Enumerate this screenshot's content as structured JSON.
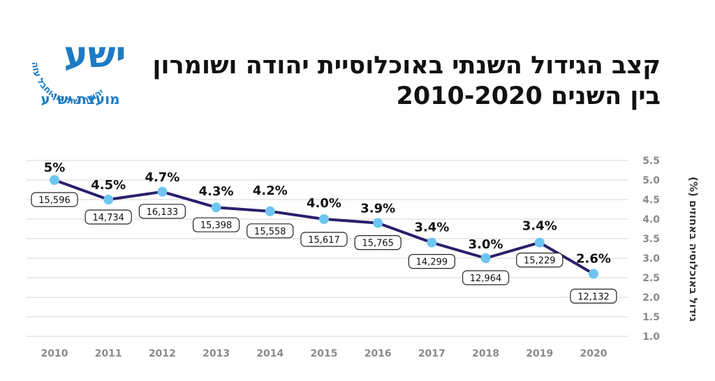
{
  "header": {
    "title_line1": "קצב הגידול השנתי באוכלוסיית יהודה ושומרון",
    "title_line2": "בין השנים 2010-2020"
  },
  "logo": {
    "emblem_text": "ישע",
    "arc_text": "יהודה שומרון וחבל עזה",
    "org_name": "מועצת יש\"ע",
    "brand_color": "#1b7bc4"
  },
  "chart_data": {
    "type": "line",
    "x": [
      "2010",
      "2011",
      "2012",
      "2013",
      "2014",
      "2015",
      "2016",
      "2017",
      "2018",
      "2019",
      "2020"
    ],
    "series": [
      {
        "values": [
          5.0,
          4.5,
          4.7,
          4.3,
          4.2,
          4.0,
          3.9,
          3.4,
          3.0,
          3.4,
          2.6
        ]
      }
    ],
    "value_labels": [
      "5%",
      "4.5%",
      "4.7%",
      "4.3%",
      "4.2%",
      "4.0%",
      "3.9%",
      "3.4%",
      "3.0%",
      "3.4%",
      "2.6%"
    ],
    "count_labels": [
      "15,596",
      "14,734",
      "16,133",
      "15,398",
      "15,558",
      "15,617",
      "15,765",
      "14,299",
      "12,964",
      "15,229",
      "12,132"
    ],
    "ylabel": "גידול באוכלוסיה באחוזים (%)",
    "ylim": [
      1.0,
      5.5
    ],
    "yticks": [
      "1.0",
      "1.5",
      "2.0",
      "2.5",
      "3.0",
      "3.5",
      "4.0",
      "4.5",
      "5.0",
      "5.5"
    ],
    "grid": true,
    "line_color": "#2a1f6b",
    "marker_color": "#6cc6f0",
    "grid_color": "#d4d4d4",
    "tick_color": "#8a8a8a"
  }
}
